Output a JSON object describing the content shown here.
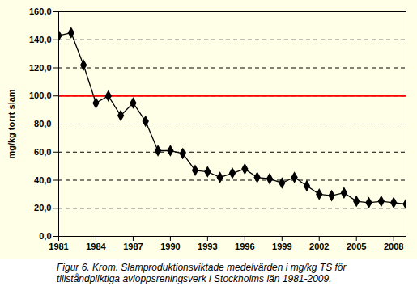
{
  "chart_data": {
    "type": "line",
    "ylabel": "mg/kg torrt slam",
    "caption": "Figur 6. Krom. Slamproduktionsviktade medelvärden i mg/kg TS för tillståndpliktiga avloppsreningsverk i Stockholms län 1981-2009.",
    "x": [
      1981,
      1982,
      1983,
      1984,
      1985,
      1986,
      1987,
      1988,
      1989,
      1990,
      1991,
      1992,
      1993,
      1994,
      1995,
      1996,
      1997,
      1998,
      1999,
      2000,
      2001,
      2002,
      2003,
      2004,
      2005,
      2006,
      2007,
      2008,
      2009
    ],
    "values": [
      143,
      145,
      122,
      95,
      100,
      86,
      95,
      82,
      61,
      61,
      59,
      47,
      46,
      42,
      45,
      48,
      42,
      41,
      38,
      42,
      36,
      30,
      29,
      31,
      25,
      24,
      25,
      24,
      23
    ],
    "color": "#000000",
    "marker": "diamond",
    "xlim": [
      1981,
      2009
    ],
    "xticks": [
      1981,
      1984,
      1987,
      1990,
      1993,
      1996,
      1999,
      2002,
      2005,
      2008
    ],
    "ylim": [
      0,
      160
    ],
    "yticks": [
      {
        "value": 0,
        "label": "0,0"
      },
      {
        "value": 20,
        "label": "20,0"
      },
      {
        "value": 40,
        "label": "40,0"
      },
      {
        "value": 60,
        "label": "60,0"
      },
      {
        "value": 80,
        "label": "80,0"
      },
      {
        "value": 100,
        "label": "100,0"
      },
      {
        "value": 120,
        "label": "120,0"
      },
      {
        "value": 140,
        "label": "140,0"
      },
      {
        "value": 160,
        "label": "160,0"
      }
    ],
    "grid": true,
    "reference_line": {
      "value": 100,
      "color": "#ff0000"
    }
  }
}
